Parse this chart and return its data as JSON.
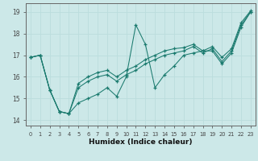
{
  "xlabel": "Humidex (Indice chaleur)",
  "bg_color": "#cce8e8",
  "grid_color": "#bbdddd",
  "line_color": "#1a7a6e",
  "xlim": [
    -0.5,
    23.5
  ],
  "ylim": [
    13.75,
    19.4
  ],
  "xticks": [
    0,
    1,
    2,
    3,
    4,
    5,
    6,
    7,
    8,
    9,
    10,
    11,
    12,
    13,
    14,
    15,
    16,
    17,
    18,
    19,
    20,
    21,
    22,
    23
  ],
  "yticks": [
    14,
    15,
    16,
    17,
    18,
    19
  ],
  "lines": [
    {
      "x": [
        0,
        1,
        2,
        3,
        4,
        5,
        6,
        7,
        8,
        9,
        10,
        11,
        12,
        13,
        14,
        15,
        16,
        17,
        18,
        19,
        20,
        21,
        22,
        23
      ],
      "y": [
        16.9,
        17.0,
        15.4,
        14.4,
        14.3,
        14.8,
        15.0,
        15.2,
        15.5,
        15.1,
        16.0,
        18.4,
        17.5,
        15.5,
        16.1,
        16.5,
        17.0,
        17.1,
        17.2,
        17.2,
        16.6,
        17.1,
        18.3,
        19.0
      ]
    },
    {
      "x": [
        0,
        1,
        2,
        3,
        4,
        5,
        6,
        7,
        8,
        9,
        10,
        11,
        12,
        13,
        14,
        15,
        16,
        17,
        18,
        19,
        20,
        21,
        22,
        23
      ],
      "y": [
        16.9,
        17.0,
        15.4,
        14.4,
        14.3,
        15.5,
        15.8,
        16.0,
        16.1,
        15.8,
        16.1,
        16.3,
        16.6,
        16.8,
        17.0,
        17.1,
        17.2,
        17.4,
        17.1,
        17.3,
        16.7,
        17.2,
        18.4,
        19.0
      ]
    },
    {
      "x": [
        0,
        1,
        2,
        3,
        4,
        5,
        6,
        7,
        8,
        9,
        10,
        11,
        12,
        13,
        14,
        15,
        16,
        17,
        18,
        19,
        20,
        21,
        22,
        23
      ],
      "y": [
        16.9,
        17.0,
        15.4,
        14.4,
        14.3,
        15.7,
        16.0,
        16.2,
        16.3,
        16.0,
        16.3,
        16.5,
        16.8,
        17.0,
        17.2,
        17.3,
        17.35,
        17.5,
        17.2,
        17.4,
        16.9,
        17.3,
        18.5,
        19.05
      ]
    }
  ]
}
